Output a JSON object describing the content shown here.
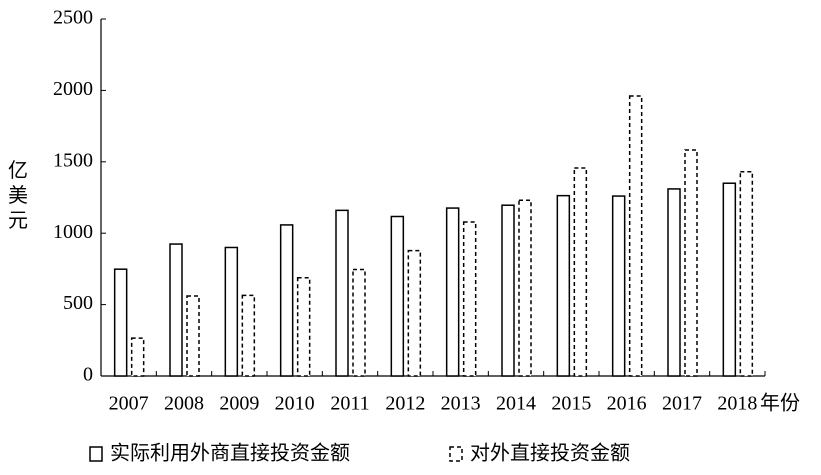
{
  "chart_data": {
    "type": "bar",
    "y_label": "亿美元",
    "x_label": "年份",
    "categories": [
      "2007",
      "2008",
      "2009",
      "2010",
      "2011",
      "2012",
      "2013",
      "2014",
      "2015",
      "2016",
      "2017",
      "2018"
    ],
    "series": [
      {
        "name": "实际利用外商直接投资金额",
        "color": "#000000",
        "line_style": "solid",
        "values": [
          748,
          924,
          900,
          1058,
          1160,
          1117,
          1176,
          1196,
          1263,
          1260,
          1310,
          1350
        ]
      },
      {
        "name": "对外直接投资金额",
        "color": "#000000",
        "line_style": "dashed",
        "values": [
          265,
          560,
          565,
          688,
          746,
          878,
          1078,
          1231,
          1457,
          1961,
          1583,
          1430
        ]
      }
    ],
    "ylim": [
      0,
      2500
    ],
    "yticks": [
      0,
      500,
      1000,
      1500,
      2000,
      2500
    ],
    "grid": false
  }
}
